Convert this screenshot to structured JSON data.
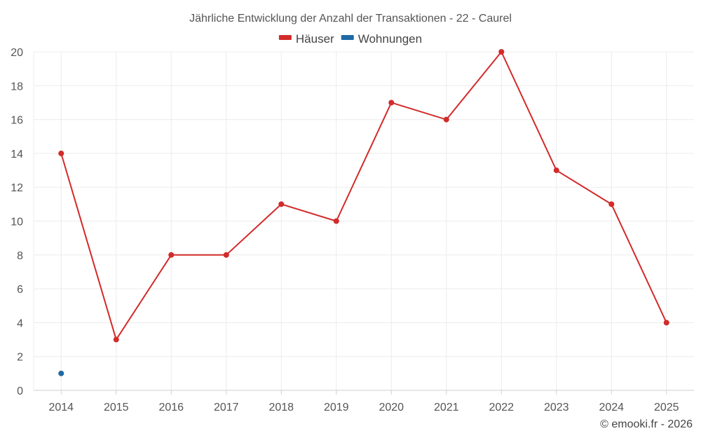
{
  "chart_data": {
    "type": "line",
    "title": "Jährliche Entwicklung der Anzahl der Transaktionen - 22 - Caurel",
    "xlabel": "",
    "ylabel": "",
    "categories": [
      "2014",
      "2015",
      "2016",
      "2017",
      "2018",
      "2019",
      "2020",
      "2021",
      "2022",
      "2023",
      "2024",
      "2025"
    ],
    "ylim": [
      0,
      20
    ],
    "yticks": [
      0,
      2,
      4,
      6,
      8,
      10,
      12,
      14,
      16,
      18,
      20
    ],
    "grid": true,
    "legend_position": "top-center",
    "series": [
      {
        "name": "Häuser",
        "color": "#d32a2a",
        "values": [
          14,
          3,
          8,
          8,
          11,
          10,
          17,
          16,
          20,
          13,
          11,
          4
        ]
      },
      {
        "name": "Wohnungen",
        "color": "#1f6aa5",
        "values": [
          1,
          null,
          null,
          null,
          null,
          null,
          null,
          null,
          null,
          null,
          null,
          null
        ]
      }
    ]
  },
  "credit": "© emooki.fr - 2026"
}
